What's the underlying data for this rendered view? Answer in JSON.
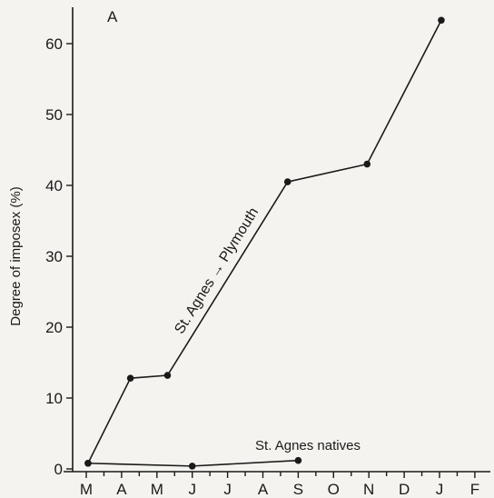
{
  "chart_data": {
    "type": "line",
    "panel_label": "A",
    "ylabel": "Degree of imposex (%)",
    "xlabel": "",
    "categories": [
      "M",
      "A",
      "M",
      "J",
      "J",
      "A",
      "S",
      "O",
      "N",
      "D",
      "J",
      "F"
    ],
    "ylim": [
      0,
      65
    ],
    "yticks": [
      0,
      10,
      20,
      30,
      40,
      50,
      60
    ],
    "grid": false,
    "series": [
      {
        "name": "St. Agnes → Plymouth",
        "points": [
          {
            "x": 0.05,
            "y": 0.8
          },
          {
            "x": 1.25,
            "y": 12.8
          },
          {
            "x": 2.3,
            "y": 13.2
          },
          {
            "x": 5.7,
            "y": 40.5
          },
          {
            "x": 7.95,
            "y": 43.0
          },
          {
            "x": 10.05,
            "y": 63.3
          }
        ]
      },
      {
        "name": "St. Agnes natives",
        "points": [
          {
            "x": 0.05,
            "y": 0.8
          },
          {
            "x": 3.0,
            "y": 0.4
          },
          {
            "x": 6.0,
            "y": 1.2
          }
        ]
      }
    ]
  }
}
